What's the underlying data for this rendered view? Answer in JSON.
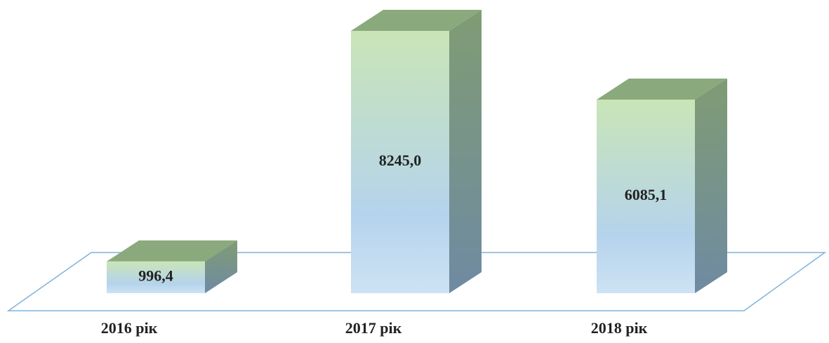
{
  "chart_data": {
    "type": "bar3d",
    "categories": [
      "2016 рік",
      "2017 рік",
      "2018 рік"
    ],
    "values": [
      996.4,
      8245.0,
      6085.1
    ],
    "value_labels": [
      "996,4",
      "8245,0",
      "6085,1"
    ]
  }
}
